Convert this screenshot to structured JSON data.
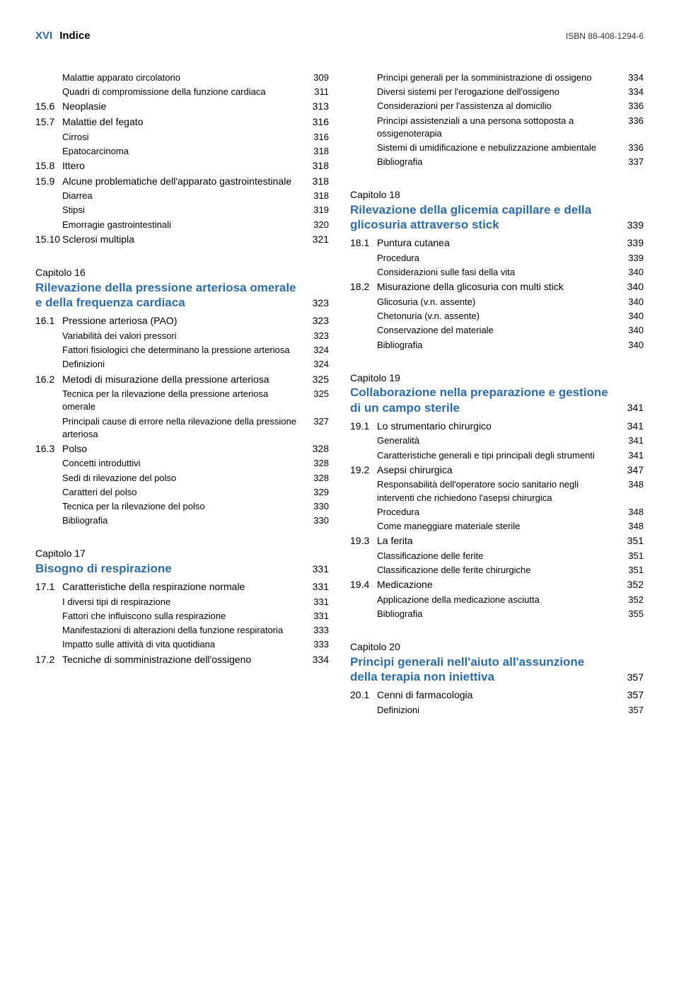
{
  "header": {
    "page_num": "XVI",
    "title": "Indice",
    "isbn": "ISBN 88-408-1294-6"
  },
  "colors": {
    "accent": "#2b6cb0",
    "text": "#000000",
    "background": "#ffffff"
  },
  "left": {
    "items": [
      {
        "type": "sub",
        "indent": 1,
        "label": "Malattie apparato circolatorio",
        "page": "309"
      },
      {
        "type": "sub",
        "indent": 1,
        "label": "Quadri di compromissione della funzione cardiaca",
        "page": "311",
        "wrapIndent": 2
      },
      {
        "type": "main",
        "num": "15.6",
        "label": "Neoplasie",
        "page": "313"
      },
      {
        "type": "main",
        "num": "15.7",
        "label": "Malattie del fegato",
        "page": "316"
      },
      {
        "type": "sub",
        "indent": 1,
        "label": "Cirrosi",
        "page": "316"
      },
      {
        "type": "sub",
        "indent": 1,
        "label": "Epatocarcinoma",
        "page": "318"
      },
      {
        "type": "main",
        "num": "15.8",
        "label": "Ittero",
        "page": "318"
      },
      {
        "type": "main",
        "num": "15.9",
        "label": "Alcune problematiche dell'apparato gastrointestinale",
        "page": "318",
        "wrapIndent": 1
      },
      {
        "type": "sub",
        "indent": 1,
        "label": "Diarrea",
        "page": "318"
      },
      {
        "type": "sub",
        "indent": 1,
        "label": "Stipsi",
        "page": "319"
      },
      {
        "type": "sub",
        "indent": 1,
        "label": "Emorragie gastrointestinali",
        "page": "320"
      },
      {
        "type": "main",
        "num": "15.10",
        "label": "Sclerosi multipla",
        "page": "321"
      }
    ],
    "ch16": {
      "prefix": "Capitolo 16",
      "title": "Rilevazione della pressione arteriosa omerale e della frequenza cardiaca",
      "page": "323",
      "items": [
        {
          "type": "main",
          "num": "16.1",
          "label": "Pressione arteriosa (PAO)",
          "page": "323"
        },
        {
          "type": "sub",
          "indent": 1,
          "label": "Variabilità dei valori pressori",
          "page": "323"
        },
        {
          "type": "sub",
          "indent": 1,
          "label": "Fattori fisiologici che determinano la pressione arteriosa",
          "page": "324",
          "wrapIndent": 2
        },
        {
          "type": "sub",
          "indent": 1,
          "label": "Definizioni",
          "page": "324"
        },
        {
          "type": "main",
          "num": "16.2",
          "label": "Metodi di misurazione della pressione arteriosa",
          "page": "325",
          "wrapIndent": 1
        },
        {
          "type": "sub",
          "indent": 1,
          "label": "Tecnica per la rilevazione della pressione arteriosa omerale",
          "page": "325",
          "wrapIndent": 2
        },
        {
          "type": "sub",
          "indent": 1,
          "label": "Principali cause di errore nella rilevazione della pressione arteriosa",
          "page": "327",
          "wrapIndent": 2
        },
        {
          "type": "main",
          "num": "16.3",
          "label": "Polso",
          "page": "328"
        },
        {
          "type": "sub",
          "indent": 1,
          "label": "Concetti introduttivi",
          "page": "328"
        },
        {
          "type": "sub",
          "indent": 1,
          "label": "Sedi di rilevazione del polso",
          "page": "328"
        },
        {
          "type": "sub",
          "indent": 1,
          "label": "Caratteri del polso",
          "page": "329"
        },
        {
          "type": "sub",
          "indent": 1,
          "label": "Tecnica per la rilevazione del polso",
          "page": "330"
        },
        {
          "type": "sub",
          "indent": 1,
          "label": "Bibliografia",
          "page": "330"
        }
      ]
    },
    "ch17": {
      "prefix": "Capitolo 17",
      "title": "Bisogno di respirazione",
      "page": "331",
      "items": [
        {
          "type": "main",
          "num": "17.1",
          "label": "Caratteristiche della respirazione normale",
          "page": "331",
          "wrapIndent": 1
        },
        {
          "type": "sub",
          "indent": 1,
          "label": "I diversi tipi di respirazione",
          "page": "331"
        },
        {
          "type": "sub",
          "indent": 1,
          "label": "Fattori che influiscono sulla respirazione",
          "page": "331"
        },
        {
          "type": "sub",
          "indent": 1,
          "label": "Manifestazioni di alterazioni della funzione respiratoria",
          "page": "333",
          "wrapIndent": 2
        },
        {
          "type": "sub",
          "indent": 1,
          "label": "Impatto sulle attività di vita quotidiana",
          "page": "333"
        },
        {
          "type": "main",
          "num": "17.2",
          "label": "Tecniche di somministrazione dell'ossigeno",
          "page": "334",
          "wrapIndent": 1
        }
      ]
    }
  },
  "right": {
    "top": [
      {
        "type": "sub",
        "indent": 1,
        "label": "Princìpi generali per la somministrazione di ossigeno",
        "page": "334",
        "wrapIndent": 2
      },
      {
        "type": "sub",
        "indent": 1,
        "label": "Diversi sistemi per l'erogazione dell'ossigeno",
        "page": "334"
      },
      {
        "type": "sub",
        "indent": 1,
        "label": "Considerazioni per l'assistenza al domicilio",
        "page": "336"
      },
      {
        "type": "sub",
        "indent": 1,
        "label": "Princìpi assistenziali a una persona sottoposta a ossigenoterapia",
        "page": "336",
        "wrapIndent": 2
      },
      {
        "type": "sub",
        "indent": 1,
        "label": "Sistemi di umidificazione e nebulizzazione ambientale",
        "page": "336",
        "wrapIndent": 2
      },
      {
        "type": "sub",
        "indent": 1,
        "label": "Bibliografia",
        "page": "337"
      }
    ],
    "ch18": {
      "prefix": "Capitolo 18",
      "title": "Rilevazione della glicemia capillare e della glicosuria attraverso stick",
      "page": "339",
      "items": [
        {
          "type": "main",
          "num": "18.1",
          "label": "Puntura cutanea",
          "page": "339"
        },
        {
          "type": "sub",
          "indent": 1,
          "label": "Procedura",
          "page": "339"
        },
        {
          "type": "sub",
          "indent": 1,
          "label": "Considerazioni sulle fasi della vita",
          "page": "340"
        },
        {
          "type": "main",
          "num": "18.2",
          "label": "Misurazione della glicosuria con multi stick",
          "page": "340",
          "wrapIndent": 1
        },
        {
          "type": "sub",
          "indent": 1,
          "label": "Glicosuria (v.n. assente)",
          "page": "340"
        },
        {
          "type": "sub",
          "indent": 1,
          "label": "Chetonuria (v.n. assente)",
          "page": "340"
        },
        {
          "type": "sub",
          "indent": 1,
          "label": "Conservazione del materiale",
          "page": "340"
        },
        {
          "type": "sub",
          "indent": 1,
          "label": "Bibliografia",
          "page": "340"
        }
      ]
    },
    "ch19": {
      "prefix": "Capitolo 19",
      "title": "Collaborazione nella preparazione e gestione di un campo sterile",
      "page": "341",
      "items": [
        {
          "type": "main",
          "num": "19.1",
          "label": "Lo strumentario chirurgico",
          "page": "341"
        },
        {
          "type": "sub",
          "indent": 1,
          "label": "Generalità",
          "page": "341"
        },
        {
          "type": "sub",
          "indent": 1,
          "label": "Caratteristiche generali e tipi principali degli strumenti",
          "page": "341",
          "wrapIndent": 2
        },
        {
          "type": "main",
          "num": "19.2",
          "label": "Asepsi chirurgica",
          "page": "347"
        },
        {
          "type": "sub",
          "indent": 1,
          "label": "Responsabilità dell'operatore socio sanitario negli interventi che richiedono l'asepsi chirurgica",
          "page": "348",
          "wrapIndent": 2
        },
        {
          "type": "sub",
          "indent": 1,
          "label": "Procedura",
          "page": "348"
        },
        {
          "type": "sub",
          "indent": 1,
          "label": "Come maneggiare materiale sterile",
          "page": "348"
        },
        {
          "type": "main",
          "num": "19.3",
          "label": "La ferita",
          "page": "351"
        },
        {
          "type": "sub",
          "indent": 1,
          "label": "Classificazione delle ferite",
          "page": "351"
        },
        {
          "type": "sub",
          "indent": 1,
          "label": "Classificazione delle ferite chirurgiche",
          "page": "351"
        },
        {
          "type": "main",
          "num": "19.4",
          "label": "Medicazione",
          "page": "352"
        },
        {
          "type": "sub",
          "indent": 1,
          "label": "Applicazione della medicazione asciutta",
          "page": "352"
        },
        {
          "type": "sub",
          "indent": 1,
          "label": "Bibliografia",
          "page": "355"
        }
      ]
    },
    "ch20": {
      "prefix": "Capitolo 20",
      "title": "Princìpi generali nell'aiuto all'assunzione della terapia non iniettiva",
      "page": "357",
      "items": [
        {
          "type": "main",
          "num": "20.1",
          "label": "Cenni di farmacologia",
          "page": "357"
        },
        {
          "type": "sub",
          "indent": 1,
          "label": "Definizioni",
          "page": "357"
        }
      ]
    }
  }
}
